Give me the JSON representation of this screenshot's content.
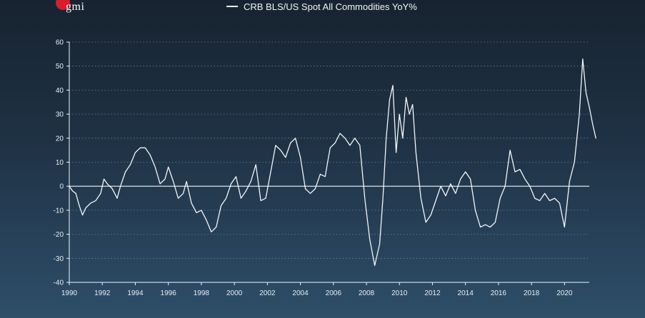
{
  "logo": {
    "text": "gmi"
  },
  "chart_data": {
    "type": "line",
    "title": "",
    "xlabel": "",
    "ylabel": "",
    "legend_position": "top-center",
    "grid": true,
    "xlim": [
      1990,
      2021.5
    ],
    "ylim": [
      -40,
      60
    ],
    "x_ticks": [
      1990,
      1992,
      1994,
      1996,
      1998,
      2000,
      2002,
      2004,
      2006,
      2008,
      2010,
      2012,
      2014,
      2016,
      2018,
      2020
    ],
    "y_ticks": [
      -40,
      -30,
      -20,
      -10,
      0,
      10,
      20,
      30,
      40,
      50,
      60
    ],
    "colors": {
      "line": "#f2f6f9",
      "axis": "#f2f6f9",
      "grid": "#6f8294"
    },
    "series": [
      {
        "name": "CRB BLS/US Spot All Commodities YoY%",
        "x": [
          1990.0,
          1990.2,
          1990.4,
          1990.6,
          1990.8,
          1991.0,
          1991.3,
          1991.6,
          1991.9,
          1992.1,
          1992.3,
          1992.6,
          1992.9,
          1993.1,
          1993.4,
          1993.7,
          1994.0,
          1994.3,
          1994.6,
          1994.9,
          1995.2,
          1995.5,
          1995.8,
          1996.0,
          1996.3,
          1996.6,
          1996.9,
          1997.1,
          1997.4,
          1997.7,
          1998.0,
          1998.3,
          1998.6,
          1998.9,
          1999.2,
          1999.5,
          1999.8,
          2000.1,
          2000.4,
          2000.7,
          2001.0,
          2001.3,
          2001.6,
          2001.9,
          2002.2,
          2002.5,
          2002.8,
          2003.1,
          2003.4,
          2003.7,
          2004.0,
          2004.3,
          2004.6,
          2004.9,
          2005.2,
          2005.5,
          2005.8,
          2006.1,
          2006.4,
          2006.7,
          2007.0,
          2007.3,
          2007.6,
          2007.9,
          2008.2,
          2008.5,
          2008.8,
          2009.0,
          2009.2,
          2009.4,
          2009.6,
          2009.8,
          2010.0,
          2010.2,
          2010.4,
          2010.6,
          2010.8,
          2011.0,
          2011.3,
          2011.6,
          2011.9,
          2012.2,
          2012.5,
          2012.8,
          2013.1,
          2013.4,
          2013.7,
          2014.0,
          2014.3,
          2014.6,
          2014.9,
          2015.2,
          2015.5,
          2015.8,
          2016.1,
          2016.4,
          2016.7,
          2017.0,
          2017.3,
          2017.6,
          2017.9,
          2018.2,
          2018.5,
          2018.8,
          2019.1,
          2019.4,
          2019.7,
          2020.0,
          2020.3,
          2020.6,
          2020.9,
          2021.1,
          2021.3,
          2021.5,
          2021.7,
          2021.9
        ],
        "values": [
          0,
          -2,
          -3,
          -8,
          -12,
          -9,
          -7,
          -6,
          -3,
          3,
          1,
          -1,
          -5,
          0,
          6,
          9,
          14,
          16,
          16,
          13,
          8,
          1,
          3,
          8,
          2,
          -5,
          -3,
          2,
          -7,
          -11,
          -10,
          -14,
          -19,
          -17,
          -8,
          -5,
          1,
          4,
          -5,
          -2,
          2,
          9,
          -6,
          -5,
          6,
          17,
          15,
          12,
          18,
          20,
          12,
          -1,
          -3,
          -1,
          5,
          4,
          16,
          18,
          22,
          20,
          17,
          20,
          17,
          -5,
          -22,
          -33,
          -24,
          -5,
          20,
          36,
          42,
          14,
          30,
          20,
          37,
          30,
          34,
          14,
          -5,
          -15,
          -12,
          -6,
          0,
          -4,
          1,
          -3,
          3,
          6,
          3,
          -10,
          -17,
          -16,
          -17,
          -15,
          -5,
          0,
          15,
          6,
          7,
          3,
          0,
          -5,
          -6,
          -3,
          -6,
          -5,
          -7,
          -17,
          2,
          10,
          30,
          53,
          39,
          33,
          26,
          20
        ]
      }
    ]
  }
}
